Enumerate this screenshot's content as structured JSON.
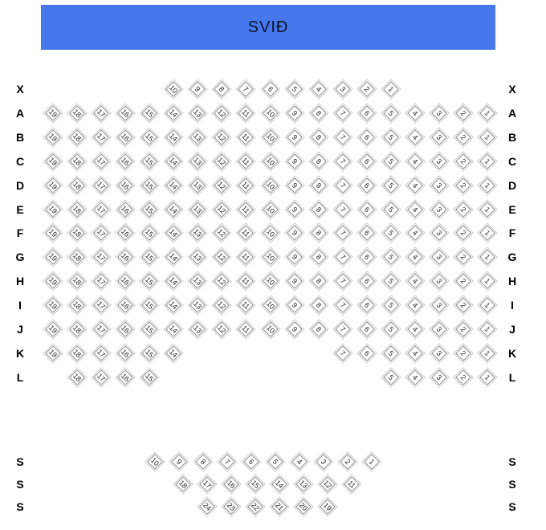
{
  "stage": {
    "label": "SVIÐ",
    "bg_color": "#4678ec",
    "text_color": "#0a1128"
  },
  "colors": {
    "seat_fill": "#ffffff",
    "seat_border": "#8a8a8a",
    "seat_outline": "#cccccc",
    "seat_number": "#222222",
    "row_label": "#000000"
  },
  "main_rows": [
    {
      "label": "X",
      "groups": [
        {
          "col": 5,
          "nums": [
            10,
            9,
            8,
            7,
            6,
            5,
            4,
            3,
            2,
            1
          ]
        }
      ]
    },
    {
      "label": "A",
      "groups": [
        {
          "col": 0,
          "nums": [
            19,
            18,
            17,
            16,
            15,
            14,
            13,
            12,
            11,
            10,
            9,
            8,
            7,
            6,
            5,
            4,
            3,
            2,
            1
          ]
        }
      ]
    },
    {
      "label": "B",
      "groups": [
        {
          "col": 0,
          "nums": [
            19,
            18,
            17,
            16,
            15,
            14,
            13,
            12,
            11,
            10,
            9,
            8,
            7,
            6,
            5,
            4,
            3,
            2,
            1
          ]
        }
      ]
    },
    {
      "label": "C",
      "groups": [
        {
          "col": 0,
          "nums": [
            19,
            18,
            17,
            16,
            15,
            14,
            13,
            12,
            11,
            10,
            9,
            8,
            7,
            6,
            5,
            4,
            3,
            2,
            1
          ]
        }
      ]
    },
    {
      "label": "D",
      "groups": [
        {
          "col": 0,
          "nums": [
            19,
            18,
            17,
            16,
            15,
            14,
            13,
            12,
            11,
            10,
            9,
            8,
            7,
            6,
            5,
            4,
            3,
            2,
            1
          ]
        }
      ]
    },
    {
      "label": "E",
      "groups": [
        {
          "col": 0,
          "nums": [
            19,
            18,
            17,
            16,
            15,
            14,
            13,
            12,
            11,
            10,
            9,
            8,
            7,
            6,
            5,
            4,
            3,
            2,
            1
          ]
        }
      ]
    },
    {
      "label": "F",
      "groups": [
        {
          "col": 0,
          "nums": [
            19,
            18,
            17,
            16,
            15,
            14,
            13,
            12,
            11,
            10,
            9,
            8,
            7,
            6,
            5,
            4,
            3,
            2,
            1
          ]
        }
      ]
    },
    {
      "label": "G",
      "groups": [
        {
          "col": 0,
          "nums": [
            19,
            18,
            17,
            16,
            15,
            14,
            13,
            12,
            11,
            10,
            9,
            8,
            7,
            6,
            5,
            4,
            3,
            2,
            1
          ]
        }
      ]
    },
    {
      "label": "H",
      "groups": [
        {
          "col": 0,
          "nums": [
            19,
            18,
            17,
            16,
            15,
            14,
            13,
            12,
            11,
            10,
            9,
            8,
            7,
            6,
            5,
            4,
            3,
            2,
            1
          ]
        }
      ]
    },
    {
      "label": "I",
      "groups": [
        {
          "col": 0,
          "nums": [
            19,
            18,
            17,
            16,
            15,
            14,
            13,
            12,
            11,
            10,
            9,
            8,
            7,
            6,
            5,
            4,
            3,
            2,
            1
          ]
        }
      ]
    },
    {
      "label": "J",
      "groups": [
        {
          "col": 0,
          "nums": [
            19,
            18,
            17,
            16,
            15,
            14,
            13,
            12,
            11,
            10,
            9,
            8,
            7,
            6,
            5,
            4,
            3,
            2,
            1
          ]
        }
      ]
    },
    {
      "label": "K",
      "groups": [
        {
          "col": 0,
          "nums": [
            19,
            18,
            17,
            16,
            15,
            14
          ]
        },
        {
          "col": 12,
          "nums": [
            7,
            6,
            5,
            4,
            3,
            2,
            1
          ]
        }
      ]
    },
    {
      "label": "L",
      "groups": [
        {
          "col": 1,
          "nums": [
            18,
            17,
            16,
            15
          ]
        },
        {
          "col": 14,
          "nums": [
            5,
            4,
            3,
            2,
            1
          ]
        }
      ]
    }
  ],
  "balcony_rows": [
    {
      "label": "S",
      "nums": [
        10,
        9,
        8,
        7,
        6,
        5,
        4,
        3,
        2,
        1
      ]
    },
    {
      "label": "S",
      "nums": [
        18,
        17,
        16,
        15,
        14,
        13,
        12,
        11
      ]
    },
    {
      "label": "S",
      "nums": [
        24,
        23,
        22,
        21,
        20,
        19
      ]
    }
  ]
}
